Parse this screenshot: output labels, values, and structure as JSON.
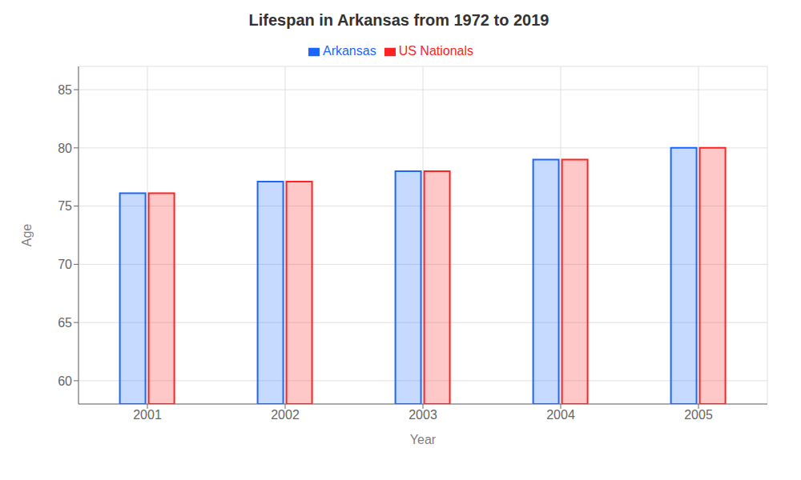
{
  "chart_data": {
    "type": "bar",
    "title": "Lifespan in Arkansas from 1972 to 2019",
    "x_label": "Year",
    "y_label": "Age",
    "categories": [
      "2001",
      "2002",
      "2003",
      "2004",
      "2005"
    ],
    "series": [
      {
        "name": "Arkansas",
        "color": "#1a66ff",
        "values": [
          76.1,
          77.1,
          78.0,
          79.0,
          80.0
        ]
      },
      {
        "name": "US Nationals",
        "color": "#ff2222",
        "values": [
          76.1,
          77.1,
          78.0,
          79.0,
          80.0
        ]
      }
    ],
    "ylim": [
      58,
      87
    ],
    "yticks": [
      60,
      65,
      70,
      75,
      80,
      85
    ],
    "grid": true,
    "legend": "top"
  }
}
